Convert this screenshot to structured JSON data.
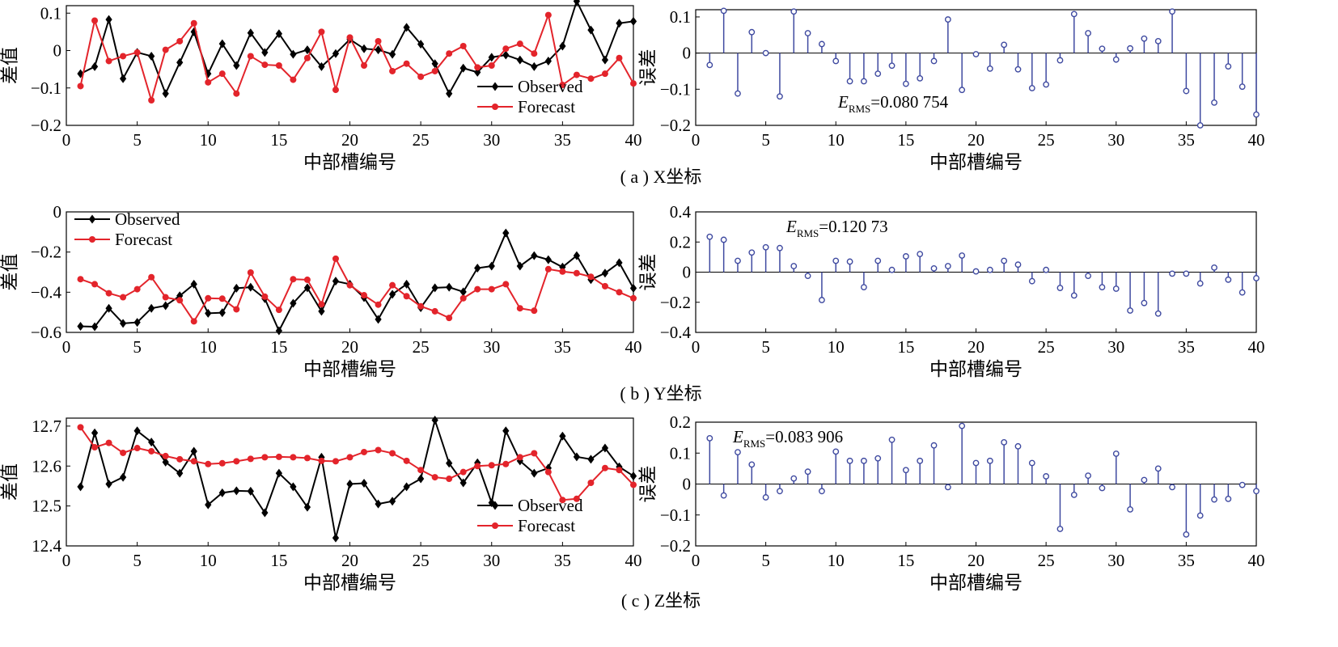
{
  "colors": {
    "observed": "#000000",
    "forecast": "#e3242b",
    "stem": "#3f4aa0",
    "axis": "#000000"
  },
  "captions": [
    "( a ) X坐标",
    "( b ) Y坐标",
    "( c ) Z坐标"
  ],
  "chart_data": [
    {
      "type": "line",
      "xlabel": "中部槽编号",
      "ylabel": "差值",
      "xlim": [
        0,
        40
      ],
      "ylim": [
        -0.2,
        0.12
      ],
      "xticks": [
        0,
        5,
        10,
        15,
        20,
        25,
        30,
        35,
        40
      ],
      "yticks": [
        -0.2,
        -0.1,
        0,
        0.1
      ],
      "ytick_labels": [
        "−0.2",
        "−0.1",
        "0",
        "0.1"
      ],
      "legend": "bottom-right",
      "x": [
        1,
        2,
        3,
        4,
        5,
        6,
        7,
        8,
        9,
        10,
        11,
        12,
        13,
        14,
        15,
        16,
        17,
        18,
        19,
        20,
        21,
        22,
        23,
        24,
        25,
        26,
        27,
        28,
        29,
        30,
        31,
        32,
        33,
        34,
        35,
        36,
        37,
        38,
        39,
        40
      ],
      "series": [
        {
          "name": "Observed",
          "marker": "diamond",
          "values": [
            -0.062,
            -0.043,
            0.083,
            -0.075,
            -0.005,
            -0.015,
            -0.115,
            -0.032,
            0.05,
            -0.062,
            0.018,
            -0.04,
            0.047,
            -0.005,
            0.045,
            -0.01,
            0.002,
            -0.043,
            -0.008,
            0.03,
            0.005,
            0.002,
            -0.01,
            0.062,
            0.017,
            -0.035,
            -0.115,
            -0.047,
            -0.058,
            -0.018,
            -0.012,
            -0.025,
            -0.043,
            -0.028,
            0.012,
            0.132,
            0.055,
            -0.025,
            0.073,
            0.078
          ]
        },
        {
          "name": "Forecast",
          "marker": "circle",
          "values": [
            -0.095,
            0.08,
            -0.028,
            -0.015,
            -0.005,
            -0.133,
            0.002,
            0.025,
            0.073,
            -0.085,
            -0.062,
            -0.115,
            -0.015,
            -0.038,
            -0.04,
            -0.078,
            -0.02,
            0.05,
            -0.105,
            0.035,
            -0.04,
            0.025,
            -0.055,
            -0.035,
            -0.07,
            -0.055,
            -0.008,
            0.012,
            -0.045,
            -0.04,
            0.005,
            0.018,
            -0.008,
            0.095,
            -0.092,
            -0.065,
            -0.075,
            -0.062,
            -0.02,
            -0.088
          ]
        }
      ]
    },
    {
      "type": "stem",
      "xlabel": "中部槽编号",
      "ylabel": "误差",
      "xlim": [
        0,
        40
      ],
      "ylim": [
        -0.2,
        0.12
      ],
      "xticks": [
        0,
        5,
        10,
        15,
        20,
        25,
        30,
        35,
        40
      ],
      "yticks": [
        -0.2,
        -0.1,
        0,
        0.1
      ],
      "ytick_labels": [
        "−0.2",
        "−0.1",
        "0",
        "0.1"
      ],
      "annotation": {
        "symbol": "E",
        "subscript": "RMS",
        "value": "=0.080 754"
      },
      "x": [
        1,
        2,
        3,
        4,
        5,
        6,
        7,
        8,
        9,
        10,
        11,
        12,
        13,
        14,
        15,
        16,
        17,
        18,
        19,
        20,
        21,
        22,
        23,
        24,
        25,
        26,
        27,
        28,
        29,
        30,
        31,
        32,
        33,
        34,
        35,
        36,
        37,
        38,
        39,
        40
      ],
      "values": [
        -0.033,
        0.117,
        -0.112,
        0.058,
        0.0,
        -0.12,
        0.115,
        0.055,
        0.025,
        -0.022,
        -0.078,
        -0.078,
        -0.057,
        -0.035,
        -0.085,
        -0.07,
        -0.022,
        0.093,
        -0.102,
        -0.003,
        -0.043,
        0.023,
        -0.045,
        -0.097,
        -0.087,
        -0.02,
        0.108,
        0.055,
        0.012,
        -0.018,
        0.013,
        0.04,
        0.033,
        0.115,
        -0.105,
        -0.2,
        -0.137,
        -0.037,
        -0.093,
        -0.17
      ]
    },
    {
      "type": "line",
      "xlabel": "中部槽编号",
      "ylabel": "差值",
      "xlim": [
        0,
        40
      ],
      "ylim": [
        -0.6,
        0
      ],
      "xticks": [
        0,
        5,
        10,
        15,
        20,
        25,
        30,
        35,
        40
      ],
      "yticks": [
        -0.6,
        -0.4,
        -0.2,
        0
      ],
      "ytick_labels": [
        "−0.6",
        "−0.4",
        "−0.2",
        "0"
      ],
      "legend": "top-left",
      "x": [
        1,
        2,
        3,
        4,
        5,
        6,
        7,
        8,
        9,
        10,
        11,
        12,
        13,
        14,
        15,
        16,
        17,
        18,
        19,
        20,
        21,
        22,
        23,
        24,
        25,
        26,
        27,
        28,
        29,
        30,
        31,
        32,
        33,
        34,
        35,
        36,
        37,
        38,
        39,
        40
      ],
      "series": [
        {
          "name": "Observed",
          "marker": "diamond",
          "values": [
            -0.57,
            -0.572,
            -0.48,
            -0.555,
            -0.55,
            -0.48,
            -0.467,
            -0.418,
            -0.36,
            -0.505,
            -0.502,
            -0.38,
            -0.375,
            -0.432,
            -0.592,
            -0.455,
            -0.378,
            -0.495,
            -0.345,
            -0.36,
            -0.427,
            -0.535,
            -0.41,
            -0.36,
            -0.477,
            -0.378,
            -0.375,
            -0.398,
            -0.28,
            -0.27,
            -0.105,
            -0.27,
            -0.218,
            -0.238,
            -0.275,
            -0.218,
            -0.337,
            -0.305,
            -0.253,
            -0.38
          ]
        },
        {
          "name": "Forecast",
          "marker": "circle",
          "values": [
            -0.335,
            -0.36,
            -0.405,
            -0.425,
            -0.385,
            -0.325,
            -0.425,
            -0.44,
            -0.545,
            -0.43,
            -0.432,
            -0.485,
            -0.302,
            -0.422,
            -0.488,
            -0.335,
            -0.338,
            -0.46,
            -0.233,
            -0.365,
            -0.415,
            -0.462,
            -0.365,
            -0.42,
            -0.47,
            -0.495,
            -0.528,
            -0.43,
            -0.385,
            -0.385,
            -0.36,
            -0.48,
            -0.492,
            -0.285,
            -0.297,
            -0.305,
            -0.323,
            -0.37,
            -0.4,
            -0.43
          ]
        }
      ]
    },
    {
      "type": "stem",
      "xlabel": "中部槽编号",
      "ylabel": "误差",
      "xlim": [
        0,
        40
      ],
      "ylim": [
        -0.4,
        0.4
      ],
      "xticks": [
        0,
        5,
        10,
        15,
        20,
        25,
        30,
        35,
        40
      ],
      "yticks": [
        -0.4,
        -0.2,
        0,
        0.2,
        0.4
      ],
      "ytick_labels": [
        "−0.4",
        "−0.2",
        "0",
        "0.2",
        "0.4"
      ],
      "annotation": {
        "symbol": "E",
        "subscript": "RMS",
        "value": "=0.120 73"
      },
      "x": [
        1,
        2,
        3,
        4,
        5,
        6,
        7,
        8,
        9,
        10,
        11,
        12,
        13,
        14,
        15,
        16,
        17,
        18,
        19,
        20,
        21,
        22,
        23,
        24,
        25,
        26,
        27,
        28,
        29,
        30,
        31,
        32,
        33,
        34,
        35,
        36,
        37,
        38,
        39,
        40
      ],
      "values": [
        0.235,
        0.215,
        0.075,
        0.13,
        0.165,
        0.16,
        0.04,
        -0.025,
        -0.185,
        0.075,
        0.07,
        -0.1,
        0.075,
        0.015,
        0.105,
        0.12,
        0.025,
        0.04,
        0.11,
        0.005,
        0.015,
        0.075,
        0.05,
        -0.06,
        0.015,
        -0.105,
        -0.155,
        -0.025,
        -0.1,
        -0.11,
        -0.255,
        -0.205,
        -0.275,
        -0.01,
        -0.01,
        -0.075,
        0.03,
        -0.05,
        -0.135,
        -0.04
      ]
    },
    {
      "type": "line",
      "xlabel": "中部槽编号",
      "ylabel": "差值",
      "xlim": [
        0,
        40
      ],
      "ylim": [
        12.4,
        12.72
      ],
      "xticks": [
        0,
        5,
        10,
        15,
        20,
        25,
        30,
        35,
        40
      ],
      "yticks": [
        12.4,
        12.5,
        12.6,
        12.7
      ],
      "ytick_labels": [
        "12.4",
        "12.5",
        "12.6",
        "12.7"
      ],
      "legend": "bottom-right",
      "x": [
        1,
        2,
        3,
        4,
        5,
        6,
        7,
        8,
        9,
        10,
        11,
        12,
        13,
        14,
        15,
        16,
        17,
        18,
        19,
        20,
        21,
        22,
        23,
        24,
        25,
        26,
        27,
        28,
        29,
        30,
        31,
        32,
        33,
        34,
        35,
        36,
        37,
        38,
        39,
        40
      ],
      "series": [
        {
          "name": "Observed",
          "marker": "diamond",
          "values": [
            12.548,
            12.683,
            12.555,
            12.572,
            12.688,
            12.66,
            12.61,
            12.582,
            12.637,
            12.503,
            12.533,
            12.538,
            12.537,
            12.483,
            12.582,
            12.548,
            12.497,
            12.622,
            12.42,
            12.555,
            12.557,
            12.505,
            12.512,
            12.548,
            12.568,
            12.715,
            12.607,
            12.558,
            12.608,
            12.508,
            12.688,
            12.613,
            12.582,
            12.595,
            12.675,
            12.623,
            12.617,
            12.645,
            12.598,
            12.575
          ]
        },
        {
          "name": "Forecast",
          "marker": "circle",
          "values": [
            12.697,
            12.647,
            12.658,
            12.633,
            12.645,
            12.637,
            12.625,
            12.617,
            12.612,
            12.605,
            12.607,
            12.612,
            12.618,
            12.622,
            12.623,
            12.622,
            12.62,
            12.613,
            12.612,
            12.622,
            12.635,
            12.64,
            12.632,
            12.613,
            12.59,
            12.572,
            12.568,
            12.585,
            12.6,
            12.602,
            12.605,
            12.622,
            12.632,
            12.585,
            12.515,
            12.518,
            12.558,
            12.595,
            12.59,
            12.553
          ]
        }
      ]
    },
    {
      "type": "stem",
      "xlabel": "中部槽编号",
      "ylabel": "误差",
      "xlim": [
        0,
        40
      ],
      "ylim": [
        -0.2,
        0.2
      ],
      "xticks": [
        0,
        5,
        10,
        15,
        20,
        25,
        30,
        35,
        40
      ],
      "yticks": [
        -0.2,
        -0.1,
        0,
        0.1,
        0.2
      ],
      "ytick_labels": [
        "−0.2",
        "−0.1",
        "0",
        "0.1",
        "0.2"
      ],
      "annotation": {
        "symbol": "E",
        "subscript": "RMS",
        "value": "=0.083 906"
      },
      "x": [
        1,
        2,
        3,
        4,
        5,
        6,
        7,
        8,
        9,
        10,
        11,
        12,
        13,
        14,
        15,
        16,
        17,
        18,
        19,
        20,
        21,
        22,
        23,
        24,
        25,
        26,
        27,
        28,
        29,
        30,
        31,
        32,
        33,
        34,
        35,
        36,
        37,
        38,
        39,
        40
      ],
      "values": [
        0.148,
        -0.037,
        0.103,
        0.063,
        -0.043,
        -0.023,
        0.018,
        0.04,
        -0.023,
        0.105,
        0.075,
        0.075,
        0.083,
        0.143,
        0.045,
        0.075,
        0.125,
        -0.01,
        0.188,
        0.068,
        0.075,
        0.135,
        0.122,
        0.068,
        0.025,
        -0.145,
        -0.035,
        0.027,
        -0.013,
        0.098,
        -0.082,
        0.013,
        0.05,
        -0.01,
        -0.163,
        -0.102,
        -0.05,
        -0.048,
        -0.003,
        -0.023
      ]
    }
  ]
}
